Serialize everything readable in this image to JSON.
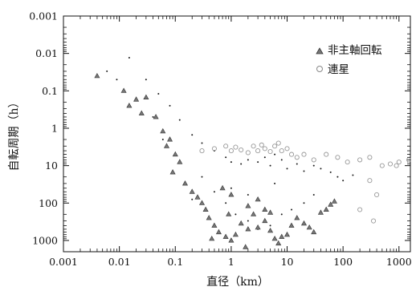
{
  "chart_data": {
    "type": "scatter",
    "xlabel": "直径（km）",
    "ylabel": "自転周期（h）",
    "x_scale": "log",
    "y_scale": "log",
    "y_inverted": true,
    "xlim": [
      0.001,
      1600
    ],
    "ylim": [
      0.001,
      2000
    ],
    "x_ticks": [
      {
        "value": 0.001,
        "label": "0.001"
      },
      {
        "value": 0.01,
        "label": "0.01"
      },
      {
        "value": 0.1,
        "label": "0.1"
      },
      {
        "value": 1,
        "label": "1"
      },
      {
        "value": 10,
        "label": "10"
      },
      {
        "value": 100,
        "label": "100"
      },
      {
        "value": 1000,
        "label": "1000"
      }
    ],
    "y_ticks": [
      {
        "value": 0.001,
        "label": "0.001"
      },
      {
        "value": 0.01,
        "label": "0.01"
      },
      {
        "value": 0.1,
        "label": "0.1"
      },
      {
        "value": 1,
        "label": "1"
      },
      {
        "value": 10,
        "label": "10"
      },
      {
        "value": 100,
        "label": "100"
      },
      {
        "value": 1000,
        "label": "1000"
      }
    ],
    "legend_position": "top-right",
    "series": [
      {
        "name": "",
        "marker": "dot",
        "color": "#1a1a1a",
        "points": [
          [
            0.015,
            0.013
          ],
          [
            0.03,
            0.05
          ],
          [
            0.05,
            0.12
          ],
          [
            0.08,
            0.25
          ],
          [
            0.12,
            0.6
          ],
          [
            0.2,
            1.5
          ],
          [
            0.3,
            2.5
          ],
          [
            0.5,
            4
          ],
          [
            0.8,
            6
          ],
          [
            1,
            8
          ],
          [
            1.5,
            9
          ],
          [
            2,
            7
          ],
          [
            3,
            8
          ],
          [
            4,
            6
          ],
          [
            5,
            10
          ],
          [
            6,
            5
          ],
          [
            8,
            7
          ],
          [
            10,
            12
          ],
          [
            15,
            9
          ],
          [
            20,
            14
          ],
          [
            30,
            10
          ],
          [
            40,
            12
          ],
          [
            60,
            15
          ],
          [
            80,
            20
          ],
          [
            100,
            25
          ],
          [
            150,
            18
          ],
          [
            0.3,
            20
          ],
          [
            0.5,
            50
          ],
          [
            0.8,
            100
          ],
          [
            1.2,
            200
          ],
          [
            2,
            300
          ],
          [
            3,
            500
          ],
          [
            5,
            400
          ],
          [
            8,
            200
          ],
          [
            12,
            150
          ],
          [
            20,
            100
          ],
          [
            30,
            60
          ],
          [
            0.15,
            30
          ],
          [
            0.2,
            80
          ],
          [
            1,
            40
          ],
          [
            2,
            60
          ],
          [
            6,
            30
          ],
          [
            0.04,
            0.5
          ],
          [
            0.06,
            2
          ],
          [
            0.1,
            5
          ],
          [
            0.006,
            0.03
          ],
          [
            0.009,
            0.05
          ]
        ]
      },
      {
        "name": "非主軸回転",
        "marker": "triangle",
        "color": "#555555",
        "points": [
          [
            0.004,
            0.04
          ],
          [
            0.012,
            0.1
          ],
          [
            0.02,
            0.17
          ],
          [
            0.015,
            0.25
          ],
          [
            0.03,
            0.15
          ],
          [
            0.045,
            0.5
          ],
          [
            0.06,
            1.2
          ],
          [
            0.07,
            3
          ],
          [
            0.08,
            2
          ],
          [
            0.1,
            5
          ],
          [
            0.12,
            8
          ],
          [
            0.15,
            30
          ],
          [
            0.2,
            50
          ],
          [
            0.25,
            70
          ],
          [
            0.3,
            100
          ],
          [
            0.35,
            150
          ],
          [
            0.4,
            250
          ],
          [
            0.5,
            400
          ],
          [
            0.6,
            600
          ],
          [
            0.8,
            800
          ],
          [
            1,
            1000
          ],
          [
            1.2,
            700
          ],
          [
            1.5,
            350
          ],
          [
            2,
            500
          ],
          [
            2.5,
            200
          ],
          [
            3,
            450
          ],
          [
            4,
            300
          ],
          [
            5,
            550
          ],
          [
            6,
            900
          ],
          [
            7,
            1200
          ],
          [
            8,
            800
          ],
          [
            10,
            700
          ],
          [
            12,
            400
          ],
          [
            15,
            250
          ],
          [
            20,
            350
          ],
          [
            25,
            450
          ],
          [
            30,
            600
          ],
          [
            40,
            180
          ],
          [
            50,
            150
          ],
          [
            60,
            110
          ],
          [
            70,
            90
          ],
          [
            2,
            120
          ],
          [
            3,
            80
          ],
          [
            4,
            150
          ],
          [
            5,
            180
          ],
          [
            1,
            60
          ],
          [
            0.7,
            40
          ],
          [
            0.9,
            200
          ],
          [
            1.8,
            1500
          ],
          [
            0.45,
            900
          ],
          [
            0.09,
            15
          ],
          [
            0.025,
            0.4
          ]
        ]
      },
      {
        "name": "連星",
        "marker": "circle",
        "color": "#999999",
        "points": [
          [
            0.3,
            4
          ],
          [
            0.5,
            3.5
          ],
          [
            0.8,
            3
          ],
          [
            1,
            4
          ],
          [
            1.2,
            3.2
          ],
          [
            1.5,
            3.8
          ],
          [
            2,
            4.5
          ],
          [
            2.5,
            3
          ],
          [
            3,
            4
          ],
          [
            3.5,
            2.8
          ],
          [
            4,
            3.5
          ],
          [
            5,
            4.2
          ],
          [
            6,
            3
          ],
          [
            7,
            2.5
          ],
          [
            8,
            4
          ],
          [
            10,
            3.5
          ],
          [
            12,
            5
          ],
          [
            15,
            6
          ],
          [
            20,
            5
          ],
          [
            30,
            7
          ],
          [
            50,
            5
          ],
          [
            80,
            6
          ],
          [
            120,
            8
          ],
          [
            200,
            7
          ],
          [
            300,
            6
          ],
          [
            500,
            10
          ],
          [
            700,
            9
          ],
          [
            1000,
            8
          ],
          [
            1500,
            7
          ],
          [
            400,
            60
          ],
          [
            300,
            25
          ],
          [
            200,
            150
          ],
          [
            350,
            300
          ],
          [
            900,
            10
          ]
        ]
      }
    ]
  }
}
